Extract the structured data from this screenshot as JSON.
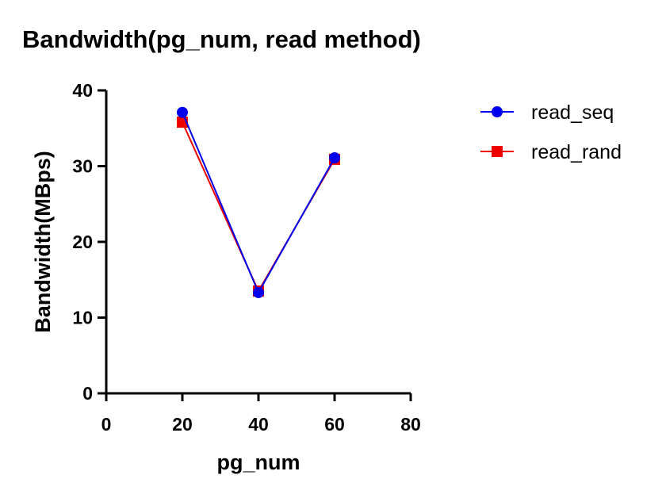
{
  "chart_data": {
    "type": "line",
    "title": "Bandwidth(pg_num, read method)",
    "xlabel": "pg_num",
    "ylabel": "Bandwidth(MBps)",
    "xlim": [
      0,
      80
    ],
    "ylim": [
      0,
      40
    ],
    "xticks": [
      "0",
      "20",
      "40",
      "60",
      "80"
    ],
    "yticks": [
      "0",
      "10",
      "20",
      "30",
      "40"
    ],
    "x": [
      20,
      40,
      60
    ],
    "series": [
      {
        "name": "read_seq",
        "values": [
          37.1,
          13.3,
          31.1
        ],
        "color": "#0000ee",
        "marker": "circle"
      },
      {
        "name": "read_rand",
        "values": [
          35.8,
          13.5,
          30.9
        ],
        "color": "#ee0000",
        "marker": "square"
      }
    ],
    "grid": false,
    "legend": "right"
  }
}
